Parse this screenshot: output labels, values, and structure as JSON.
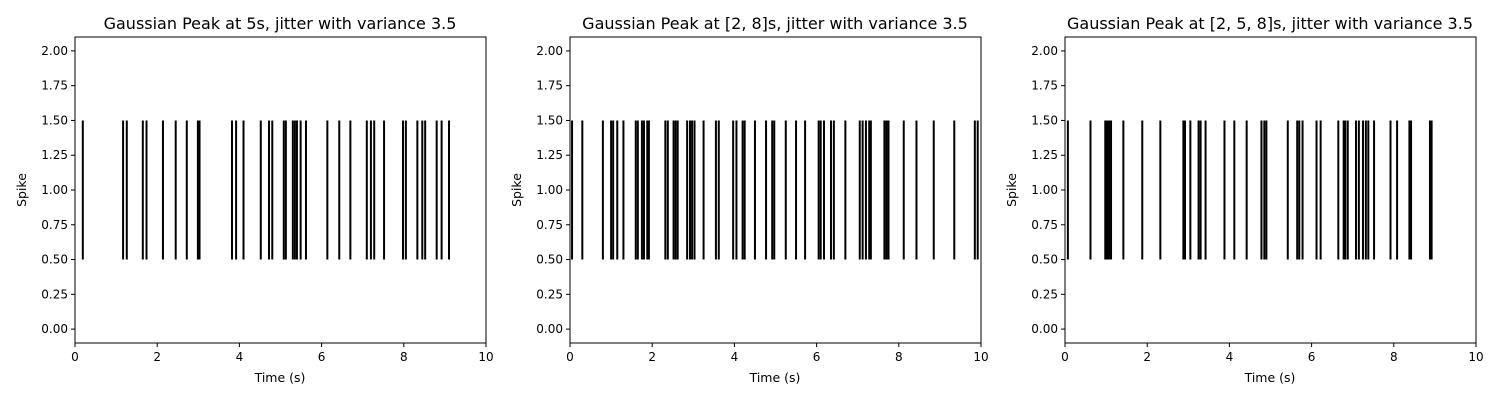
{
  "chart_data": [
    {
      "type": "eventplot",
      "title": "Gaussian Peak at 5s, jitter with variance 3.5",
      "xlabel": "Time (s)",
      "ylabel": "Spike",
      "xlim": [
        0,
        10
      ],
      "ylim": [
        -0.1,
        2.1
      ],
      "xticks": [
        0,
        2,
        4,
        6,
        8,
        10
      ],
      "xtick_labels": [
        "0",
        "2",
        "4",
        "6",
        "8",
        "10"
      ],
      "yticks": [
        0,
        0.25,
        0.5,
        0.75,
        1.0,
        1.25,
        1.5,
        1.75,
        2.0
      ],
      "ytick_labels": [
        "0.00",
        "0.25",
        "0.50",
        "0.75",
        "1.00",
        "1.25",
        "1.50",
        "1.75",
        "2.00"
      ],
      "line_range": [
        0.5,
        1.5
      ],
      "grid": false,
      "spike_times": [
        0.19,
        1.17,
        1.26,
        1.65,
        1.74,
        2.14,
        2.45,
        2.72,
        2.99,
        3.03,
        3.82,
        3.92,
        4.1,
        4.52,
        4.72,
        4.8,
        5.08,
        5.13,
        5.3,
        5.35,
        5.4,
        5.49,
        5.62,
        6.14,
        6.43,
        6.7,
        7.1,
        7.2,
        7.28,
        7.52,
        7.98,
        8.05,
        8.33,
        8.45,
        8.52,
        8.8,
        8.92,
        9.1
      ]
    },
    {
      "type": "eventplot",
      "title": "Gaussian Peak at [2, 8]s, jitter with variance 3.5",
      "xlabel": "Time (s)",
      "ylabel": "Spike",
      "xlim": [
        0,
        10
      ],
      "ylim": [
        -0.1,
        2.1
      ],
      "xticks": [
        0,
        2,
        4,
        6,
        8,
        10
      ],
      "xtick_labels": [
        "0",
        "2",
        "4",
        "6",
        "8",
        "10"
      ],
      "yticks": [
        0,
        0.25,
        0.5,
        0.75,
        1.0,
        1.25,
        1.5,
        1.75,
        2.0
      ],
      "ytick_labels": [
        "0.00",
        "0.25",
        "0.50",
        "0.75",
        "1.00",
        "1.25",
        "1.50",
        "1.75",
        "2.00"
      ],
      "line_range": [
        0.5,
        1.5
      ],
      "grid": false,
      "spike_times": [
        0.05,
        0.3,
        0.8,
        1.0,
        1.05,
        1.15,
        1.3,
        1.6,
        1.65,
        1.75,
        1.8,
        1.88,
        1.92,
        2.32,
        2.38,
        2.52,
        2.57,
        2.62,
        2.85,
        2.92,
        2.97,
        3.03,
        3.25,
        3.55,
        3.62,
        3.97,
        4.05,
        4.2,
        4.25,
        4.5,
        4.77,
        4.92,
        4.97,
        5.25,
        5.5,
        5.72,
        6.05,
        6.1,
        6.18,
        6.35,
        6.42,
        6.7,
        7.05,
        7.12,
        7.2,
        7.28,
        7.32,
        7.65,
        7.7,
        7.75,
        8.12,
        8.43,
        8.85,
        9.35,
        9.85,
        9.92
      ]
    },
    {
      "type": "eventplot",
      "title": "Gaussian Peak at [2, 5, 8]s, jitter with variance 3.5",
      "xlabel": "Time (s)",
      "ylabel": "Spike",
      "xlim": [
        0,
        10
      ],
      "ylim": [
        -0.1,
        2.1
      ],
      "xticks": [
        0,
        2,
        4,
        6,
        8,
        10
      ],
      "xtick_labels": [
        "0",
        "2",
        "4",
        "6",
        "8",
        "10"
      ],
      "yticks": [
        0,
        0.25,
        0.5,
        0.75,
        1.0,
        1.25,
        1.5,
        1.75,
        2.0
      ],
      "ytick_labels": [
        "0.00",
        "0.25",
        "0.50",
        "0.75",
        "1.00",
        "1.25",
        "1.50",
        "1.75",
        "2.00"
      ],
      "line_range": [
        0.5,
        1.5
      ],
      "grid": false,
      "spike_times": [
        0.07,
        0.62,
        0.98,
        1.02,
        1.05,
        1.08,
        1.12,
        1.42,
        1.88,
        2.32,
        2.88,
        2.92,
        3.05,
        3.25,
        3.3,
        3.42,
        3.88,
        4.12,
        4.42,
        4.78,
        4.85,
        4.9,
        5.42,
        5.65,
        5.7,
        5.78,
        6.12,
        6.22,
        6.65,
        6.78,
        6.82,
        6.88,
        7.08,
        7.15,
        7.25,
        7.32,
        7.38,
        7.52,
        7.92,
        8.08,
        8.38,
        8.42,
        8.88,
        8.92
      ]
    }
  ]
}
